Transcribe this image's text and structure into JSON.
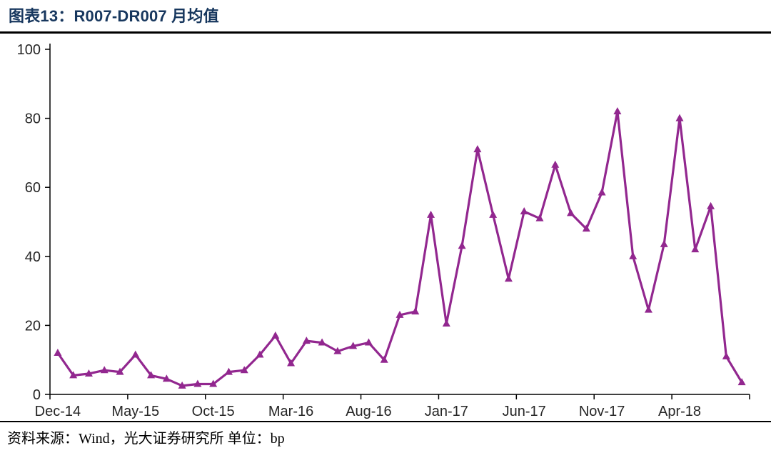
{
  "page": {
    "title": "图表13：R007-DR007 月均值",
    "source_note": "资料来源：Wind，光大证券研究所 单位：bp"
  },
  "colors": {
    "line": "#92278F",
    "title": "#17375E",
    "axis": "#000000",
    "tick_label": "#262626"
  },
  "chart_data": {
    "type": "line",
    "title": "R007-DR007 月均值",
    "unit": "bp",
    "marker": "triangle",
    "grid": false,
    "legend_position": "none",
    "ylim": [
      0,
      100
    ],
    "y_ticks": [
      0,
      20,
      40,
      60,
      80,
      100
    ],
    "x_tick_label_indices": [
      0,
      5,
      10,
      15,
      20,
      25,
      30,
      35,
      40
    ],
    "x_tick_labels": [
      "Dec-14",
      "May-15",
      "Oct-15",
      "Mar-16",
      "Aug-16",
      "Jan-17",
      "Jun-17",
      "Nov-17",
      "Apr-18"
    ],
    "x": [
      "Dec-14",
      "Jan-15",
      "Feb-15",
      "Mar-15",
      "Apr-15",
      "May-15",
      "Jun-15",
      "Jul-15",
      "Aug-15",
      "Sep-15",
      "Oct-15",
      "Nov-15",
      "Dec-15",
      "Jan-16",
      "Feb-16",
      "Mar-16",
      "Apr-16",
      "May-16",
      "Jun-16",
      "Jul-16",
      "Aug-16",
      "Sep-16",
      "Oct-16",
      "Nov-16",
      "Dec-16",
      "Jan-17",
      "Feb-17",
      "Mar-17",
      "Apr-17",
      "May-17",
      "Jun-17",
      "Jul-17",
      "Aug-17",
      "Sep-17",
      "Oct-17",
      "Nov-17",
      "Dec-17",
      "Jan-18",
      "Feb-18",
      "Mar-18",
      "Apr-18",
      "May-18",
      "Jun-18",
      "Jul-18",
      "Aug-18"
    ],
    "values": [
      12,
      5.5,
      6,
      7,
      6.5,
      11.5,
      5.5,
      4.5,
      2.5,
      3,
      3,
      6.5,
      7,
      11.5,
      17,
      9,
      15.5,
      15,
      12.5,
      14,
      15,
      10,
      23,
      24,
      52,
      20.5,
      43,
      71,
      52,
      33.5,
      53,
      51,
      66.5,
      52.5,
      48,
      58.5,
      82,
      40,
      24.5,
      43.5,
      80,
      42,
      54.5,
      11,
      3.5
    ]
  }
}
